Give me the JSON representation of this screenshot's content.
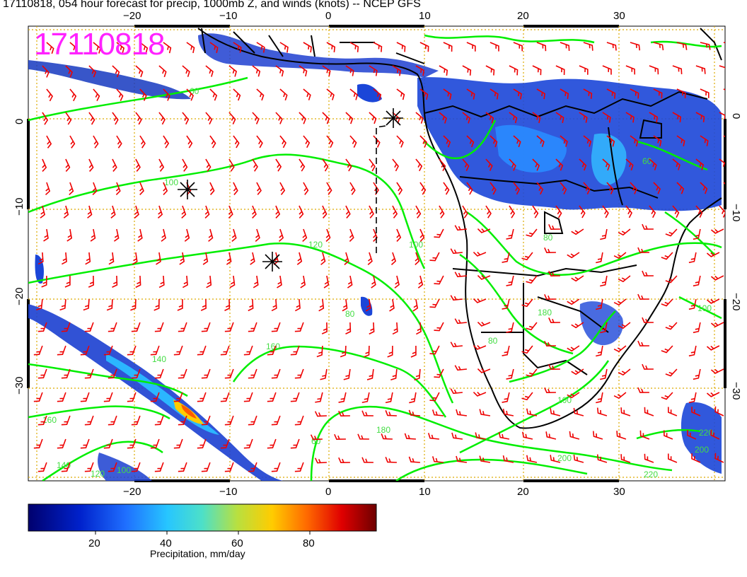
{
  "header": {
    "title": "17110818, 054 hour forecast for precip, 1000mb Z, and winds (knots) -- NCEP GFS",
    "stamp": "17110818"
  },
  "axes": {
    "lon_ticks": [
      "−20",
      "−10",
      "0",
      "10",
      "20",
      "30"
    ],
    "lat_ticks": [
      "0",
      "−10",
      "−20",
      "−30"
    ]
  },
  "contour_labels": [
    "60",
    "100",
    "120",
    "140",
    "160",
    "180",
    "200",
    "220",
    "160",
    "140",
    "120",
    "100",
    "60",
    "80",
    "100",
    "100",
    "60",
    "80",
    "200",
    "220",
    "180",
    "100",
    "80"
  ],
  "colorbar": {
    "ticks": [
      "20",
      "40",
      "60",
      "80"
    ],
    "label": "Precipitation, mm/day",
    "colors": [
      "#00006e",
      "#0022cc",
      "#1f6fff",
      "#27c6ff",
      "#4de0c8",
      "#8fe070",
      "#d9d02a",
      "#ff8a00",
      "#e00000",
      "#6e0000"
    ]
  },
  "colors": {
    "contour": "#00ee00",
    "wind_barb": "#ee0000",
    "grid": "#ddaa00",
    "stamp": "#ff22ff"
  }
}
